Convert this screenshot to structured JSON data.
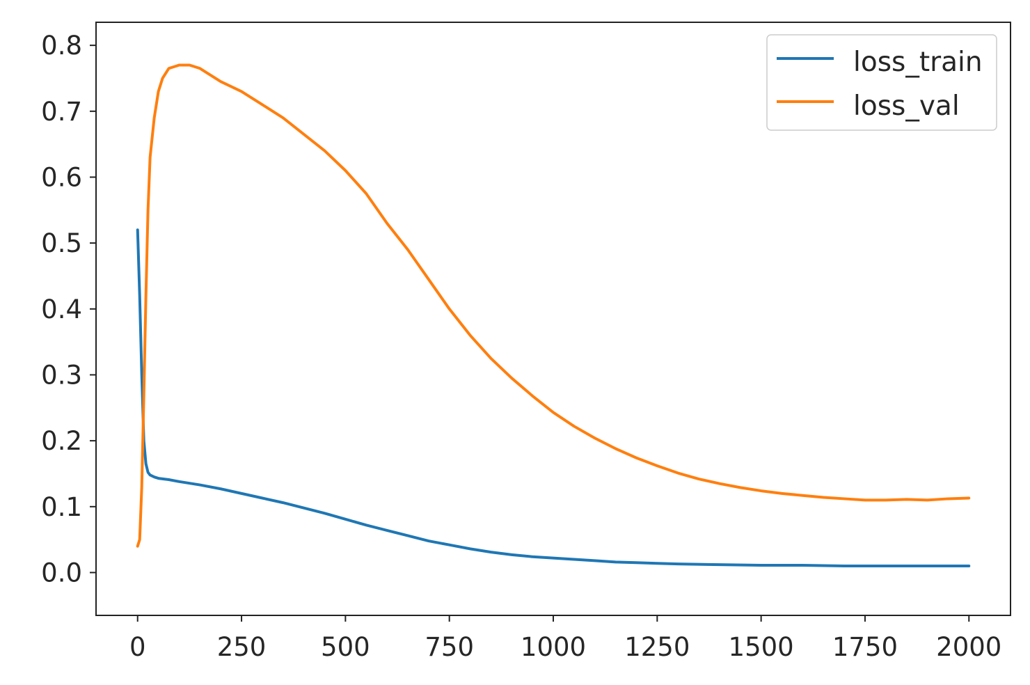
{
  "chart_data": {
    "type": "line",
    "title": "",
    "xlabel": "",
    "ylabel": "",
    "xlim": [
      -100,
      2100
    ],
    "ylim": [
      -0.065,
      0.835
    ],
    "x_ticks": [
      0,
      250,
      500,
      750,
      1000,
      1250,
      1500,
      1750,
      2000
    ],
    "x_tick_labels": [
      "0",
      "250",
      "500",
      "750",
      "1000",
      "1250",
      "1500",
      "1750",
      "2000"
    ],
    "y_ticks": [
      0.0,
      0.1,
      0.2,
      0.3,
      0.4,
      0.5,
      0.6,
      0.7,
      0.8
    ],
    "y_tick_labels": [
      "0.0",
      "0.1",
      "0.2",
      "0.3",
      "0.4",
      "0.5",
      "0.6",
      "0.7",
      "0.8"
    ],
    "grid": false,
    "legend_position": "top-right",
    "series": [
      {
        "name": "loss_train",
        "color": "#1f77b4",
        "x": [
          0,
          5,
          10,
          15,
          20,
          25,
          30,
          40,
          50,
          75,
          100,
          150,
          200,
          250,
          300,
          350,
          400,
          450,
          500,
          550,
          600,
          650,
          700,
          750,
          800,
          850,
          900,
          950,
          1000,
          1050,
          1100,
          1150,
          1200,
          1250,
          1300,
          1400,
          1500,
          1600,
          1700,
          1800,
          1900,
          2000
        ],
        "y": [
          0.52,
          0.42,
          0.3,
          0.2,
          0.165,
          0.152,
          0.148,
          0.145,
          0.143,
          0.141,
          0.138,
          0.133,
          0.127,
          0.12,
          0.113,
          0.106,
          0.098,
          0.09,
          0.081,
          0.072,
          0.064,
          0.056,
          0.048,
          0.042,
          0.036,
          0.031,
          0.027,
          0.024,
          0.022,
          0.02,
          0.018,
          0.016,
          0.015,
          0.014,
          0.013,
          0.012,
          0.011,
          0.011,
          0.01,
          0.01,
          0.01,
          0.01
        ]
      },
      {
        "name": "loss_val",
        "color": "#ff7f0e",
        "x": [
          0,
          5,
          10,
          15,
          20,
          25,
          30,
          40,
          50,
          60,
          75,
          100,
          125,
          150,
          200,
          250,
          300,
          350,
          400,
          450,
          500,
          550,
          600,
          650,
          700,
          750,
          800,
          850,
          900,
          950,
          1000,
          1050,
          1100,
          1150,
          1200,
          1250,
          1300,
          1350,
          1400,
          1450,
          1500,
          1550,
          1600,
          1650,
          1700,
          1750,
          1800,
          1850,
          1900,
          1950,
          2000
        ],
        "y": [
          0.04,
          0.05,
          0.13,
          0.27,
          0.42,
          0.55,
          0.63,
          0.69,
          0.73,
          0.75,
          0.765,
          0.77,
          0.77,
          0.765,
          0.745,
          0.73,
          0.71,
          0.69,
          0.665,
          0.64,
          0.61,
          0.575,
          0.53,
          0.49,
          0.445,
          0.4,
          0.36,
          0.325,
          0.295,
          0.268,
          0.243,
          0.222,
          0.204,
          0.188,
          0.174,
          0.162,
          0.151,
          0.142,
          0.135,
          0.129,
          0.124,
          0.12,
          0.117,
          0.114,
          0.112,
          0.11,
          0.11,
          0.111,
          0.11,
          0.112,
          0.113
        ]
      }
    ]
  }
}
